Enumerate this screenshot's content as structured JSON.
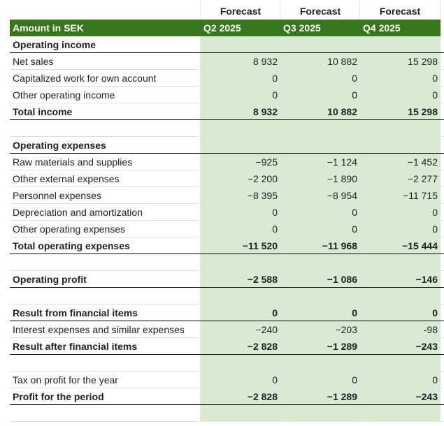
{
  "columns": {
    "forecast_labels": [
      "Forecast",
      "Forecast",
      "Forecast"
    ],
    "header_label": "Amount in SEK",
    "quarters": [
      "Q2 2025",
      "Q3 2025",
      "Q4 2025"
    ]
  },
  "rows": [
    {
      "label": "Operating income",
      "values": [
        "",
        "",
        ""
      ],
      "bold": true
    },
    {
      "label": "Net sales",
      "values": [
        "8 932",
        "10 882",
        "15 298"
      ]
    },
    {
      "label": "Capitalized work for own account",
      "values": [
        "0",
        "0",
        "0"
      ]
    },
    {
      "label": "Other operating income",
      "values": [
        "0",
        "0",
        "0"
      ]
    },
    {
      "label": "Total income",
      "values": [
        "8 932",
        "10 882",
        "15 298"
      ],
      "bold": true
    },
    {
      "label": "",
      "values": [
        "",
        "",
        ""
      ]
    },
    {
      "label": "Operating expenses",
      "values": [
        "",
        "",
        ""
      ],
      "bold": true
    },
    {
      "label": "Raw materials and supplies",
      "values": [
        "−925",
        "−1 124",
        "−1 452"
      ]
    },
    {
      "label": "Other external expenses",
      "values": [
        "−2 200",
        "−1 890",
        "−2 277"
      ]
    },
    {
      "label": "Personnel expenses",
      "values": [
        "−8 395",
        "−8 954",
        "−11 715"
      ]
    },
    {
      "label": "Depreciation and amortization",
      "values": [
        "0",
        "0",
        "0"
      ]
    },
    {
      "label": "Other operating expenses",
      "values": [
        "0",
        "0",
        "0"
      ]
    },
    {
      "label": "Total operating expenses",
      "values": [
        "−11 520",
        "−11 968",
        "−15 444"
      ],
      "bold": true
    },
    {
      "label": "",
      "values": [
        "",
        "",
        ""
      ]
    },
    {
      "label": "Operating profit",
      "values": [
        "−2 588",
        "−1 086",
        "−146"
      ],
      "bold": true
    },
    {
      "label": "",
      "values": [
        "",
        "",
        ""
      ]
    },
    {
      "label": "Result from financial items",
      "values": [
        "0",
        "0",
        "0"
      ],
      "bold": true
    },
    {
      "label": "Interest expenses and similar expenses",
      "values": [
        "−240",
        "−203",
        "-98"
      ]
    },
    {
      "label": "Result after financial items",
      "values": [
        "−2 828",
        "−1 289",
        "−243"
      ],
      "bold": true
    },
    {
      "label": "",
      "values": [
        "",
        "",
        ""
      ]
    },
    {
      "label": "Tax on profit for the year",
      "values": [
        "0",
        "0",
        "0"
      ]
    },
    {
      "label": "Profit for the period",
      "values": [
        "−2 828",
        "−1 289",
        "−243"
      ],
      "bold": true
    },
    {
      "label": "",
      "values": [
        "",
        "",
        ""
      ]
    }
  ],
  "colors": {
    "header_green": "#38761d",
    "forecast_fill": "#d9ead3",
    "grid": "#e2e3e3"
  }
}
